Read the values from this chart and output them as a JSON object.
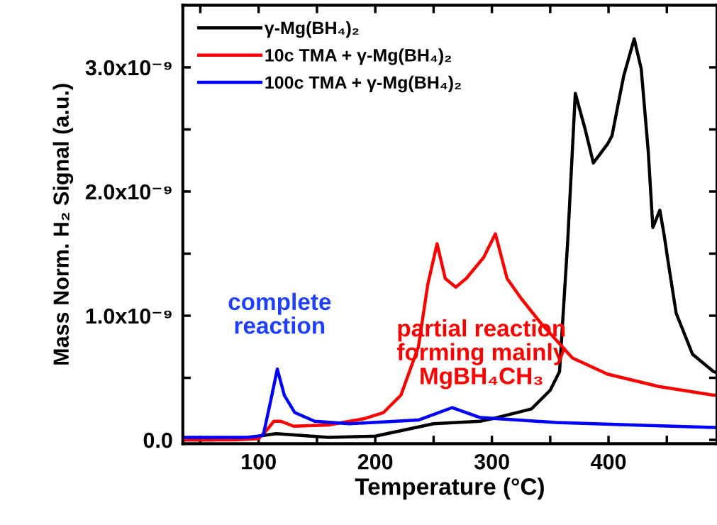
{
  "chart_data": {
    "type": "line",
    "xlabel": "Temperature (°C)",
    "ylabel": "Mass Norm. H₂ Signal (a.u.)",
    "xlim": [
      35,
      493
    ],
    "ylim": [
      -3e-11,
      3.5e-09
    ],
    "xticks": [
      {
        "value": 50,
        "label": null
      },
      100,
      {
        "value": 150,
        "label": null
      },
      200,
      {
        "value": 250,
        "label": null
      },
      300,
      {
        "value": 350,
        "label": null
      },
      400,
      {
        "value": 450,
        "label": null
      }
    ],
    "yticks": [
      {
        "value": 0,
        "label": "0.0"
      },
      {
        "value": 5e-10,
        "label": null
      },
      {
        "value": 1e-09,
        "label": "1.0x10⁻⁹"
      },
      {
        "value": 1.5e-09,
        "label": null
      },
      {
        "value": 2e-09,
        "label": "2.0x10⁻⁹"
      },
      {
        "value": 2.5e-09,
        "label": null
      },
      {
        "value": 3e-09,
        "label": "3.0x10⁻⁹"
      }
    ],
    "grid": false,
    "legend": "top left",
    "marker": "none",
    "line_style": "solid",
    "series": [
      {
        "name": "γ-Mg(BH₄)₂",
        "color": "#000000",
        "x": [
          35,
          60,
          90,
          100,
          115,
          130,
          160,
          200,
          250,
          290,
          300,
          334,
          350,
          358,
          365,
          371.5,
          380,
          387,
          399,
          403,
          409,
          413,
          422,
          428,
          434,
          438,
          444,
          448,
          451,
          458,
          472,
          490,
          493
        ],
        "values": [
          0.0,
          0.0,
          1e-11,
          3e-11,
          5e-11,
          4e-11,
          2e-11,
          3e-11,
          1.3e-10,
          1.5e-10,
          1.7e-10,
          2.5e-10,
          4e-10,
          5.5e-10,
          1.6e-09,
          2.79e-09,
          2.5e-09,
          2.23e-09,
          2.38e-09,
          2.45e-09,
          2.74e-09,
          2.93e-09,
          3.23e-09,
          2.99e-09,
          2.33e-09,
          1.71e-09,
          1.85e-09,
          1.63e-09,
          1.44e-09,
          1.02e-09,
          6.9e-10,
          5.5e-10,
          5.4e-10
        ]
      },
      {
        "name": "10c TMA + γ-Mg(BH₄)₂",
        "color": "#ff0000",
        "x": [
          35,
          80,
          100,
          107,
          113,
          119,
          130,
          160,
          190,
          207,
          222,
          237,
          245,
          253,
          260,
          269,
          278,
          293,
          303,
          313,
          325,
          342,
          369,
          399,
          443,
          490,
          493
        ],
        "values": [
          0.0,
          0.0,
          1e-11,
          8e-11,
          1.5e-10,
          1.5e-10,
          1.1e-10,
          1.2e-10,
          1.7e-10,
          2.2e-10,
          3.6e-10,
          7.5e-10,
          1.25e-09,
          1.58e-09,
          1.3e-09,
          1.23e-09,
          1.3e-09,
          1.47e-09,
          1.66e-09,
          1.3e-09,
          1.14e-09,
          9.4e-10,
          6.6e-10,
          5.3e-10,
          4.3e-10,
          3.6e-10,
          3.6e-10
        ]
      },
      {
        "name": "100c TMA + γ-Mg(BH₄)₂",
        "color": "#0000ff",
        "x": [
          35,
          60,
          90,
          100,
          104,
          110,
          116,
          122,
          131,
          148,
          178,
          237,
          266,
          290,
          355,
          420,
          490,
          493
        ],
        "values": [
          2e-11,
          2e-11,
          2e-11,
          3e-11,
          4e-11,
          3e-10,
          5.7e-10,
          3.6e-10,
          2.2e-10,
          1.5e-10,
          1.3e-10,
          1.6e-10,
          2.6e-10,
          1.8e-10,
          1.4e-10,
          1.2e-10,
          1e-10,
          1e-10
        ]
      }
    ],
    "annotations": [
      "complete\nreaction",
      "partial reaction\nforming mainly\nMgBH₄CH₃"
    ]
  }
}
